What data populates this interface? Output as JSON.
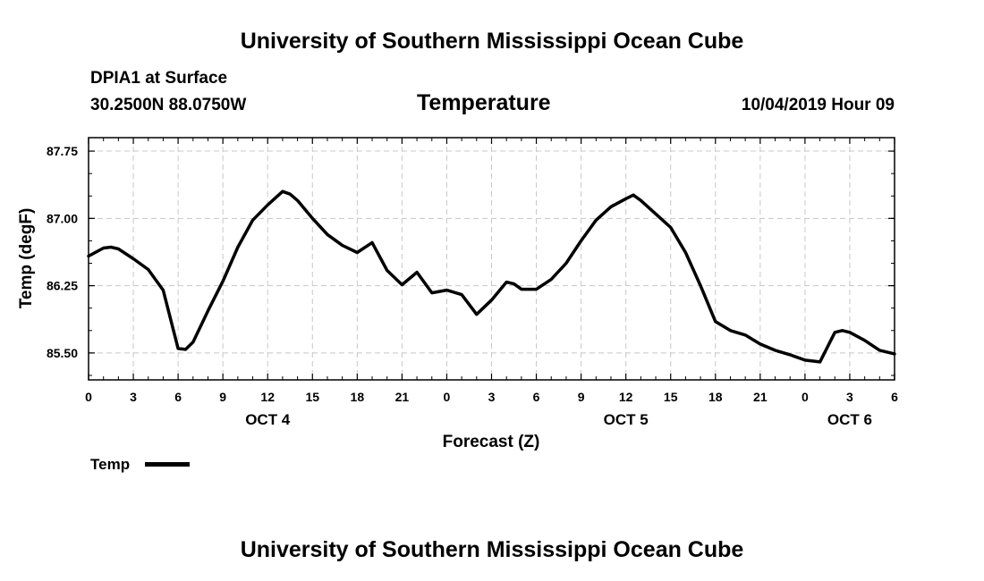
{
  "header": {
    "top_title": "University of Southern Mississippi Ocean Cube",
    "bottom_title": "University of Southern Mississippi Ocean Cube",
    "station": "DPIA1 at Surface",
    "coords": "30.2500N 88.0750W",
    "variable": "Temperature",
    "datetime": "10/04/2019 Hour 09"
  },
  "legend": {
    "label": "Temp"
  },
  "colors": {
    "line": "#000000",
    "grid": "#c8c8c8"
  },
  "chart_data": {
    "type": "line",
    "title": "Temperature",
    "xlabel": "Forecast (Z)",
    "ylabel": "Temp (degF)",
    "xlim": [
      0,
      54
    ],
    "ylim": [
      85.2,
      87.9
    ],
    "y_ticks": [
      85.5,
      86.25,
      87.0,
      87.75
    ],
    "y_tick_labels": [
      "85.50",
      "86.25",
      "87.00",
      "87.75"
    ],
    "x_ticks": [
      0,
      3,
      6,
      9,
      12,
      15,
      18,
      21,
      24,
      27,
      30,
      33,
      36,
      39,
      42,
      45,
      48,
      51,
      54
    ],
    "x_tick_labels": [
      "0",
      "3",
      "6",
      "9",
      "12",
      "15",
      "18",
      "21",
      "0",
      "3",
      "6",
      "9",
      "12",
      "15",
      "18",
      "21",
      "0",
      "3",
      "6"
    ],
    "date_labels": [
      {
        "x": 12,
        "label": "OCT 4"
      },
      {
        "x": 36,
        "label": "OCT 5"
      },
      {
        "x": 51,
        "label": "OCT 6"
      }
    ],
    "grid": true,
    "series": [
      {
        "name": "Temp",
        "x": [
          0,
          1,
          1.5,
          2,
          3,
          4,
          5,
          6,
          6.5,
          7,
          8,
          9,
          10,
          11,
          12,
          13,
          13.5,
          14,
          15,
          16,
          17,
          18,
          19,
          20,
          21,
          22,
          23,
          24,
          25,
          26,
          27,
          28,
          28.5,
          29,
          30,
          31,
          32,
          33,
          34,
          35,
          36,
          36.5,
          37,
          38,
          39,
          40,
          41,
          42,
          43,
          44,
          45,
          46,
          47,
          48,
          49,
          50,
          50.5,
          51,
          52,
          53,
          54
        ],
        "values": [
          86.58,
          86.67,
          86.68,
          86.66,
          86.55,
          86.43,
          86.2,
          85.55,
          85.54,
          85.62,
          85.97,
          86.3,
          86.68,
          86.98,
          87.15,
          87.3,
          87.27,
          87.2,
          87.0,
          86.82,
          86.7,
          86.62,
          86.73,
          86.42,
          86.26,
          86.4,
          86.17,
          86.2,
          86.15,
          85.93,
          86.09,
          86.29,
          86.27,
          86.21,
          86.21,
          86.32,
          86.5,
          86.75,
          86.98,
          87.13,
          87.22,
          87.26,
          87.2,
          87.05,
          86.9,
          86.62,
          86.25,
          85.85,
          85.75,
          85.7,
          85.6,
          85.53,
          85.48,
          85.42,
          85.4,
          85.73,
          85.75,
          85.73,
          85.64,
          85.53,
          85.49
        ]
      }
    ]
  }
}
